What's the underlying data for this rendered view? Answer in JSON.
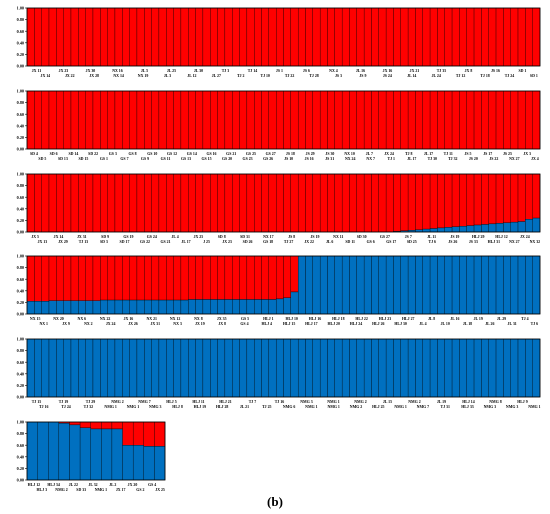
{
  "caption": "(b)",
  "colors": {
    "red": "#ff0000",
    "blue": "#0070c0",
    "axis": "#000000"
  },
  "chart_data": [
    {
      "type": "bar",
      "stacked": true,
      "ylim": [
        0,
        1
      ],
      "yticks": [
        "1.00",
        "0.80",
        "0.60",
        "0.40",
        "0.20",
        "0.00"
      ],
      "tick_labels_top": [
        "JX 11",
        "JX 23",
        "JX 30",
        "NX 16",
        "JL 5",
        "JL 25",
        "JL 30",
        "TJ 3",
        "TJ 14",
        "JS 1",
        "JS 6",
        "NX 4",
        "JL 16",
        "JX 16",
        "JX 21",
        "TJ 35",
        "JX 8",
        "JS 16",
        "SD 1"
      ],
      "tick_labels_bottom": [
        "JX 14",
        "JX 22",
        "JX 28",
        "NX 14",
        "NX 19",
        "JL 3",
        "JL 12",
        "JL 27",
        "TJ 2",
        "TJ 10",
        "TJ 22",
        "TJ 28",
        "JS 3",
        "JS 9",
        "JS 24",
        "JL 14",
        "JL 24",
        "TJ 12",
        "TJ 18",
        "TJ 24",
        "SD 1"
      ],
      "num_bars": 70,
      "blue_values": [
        0,
        0,
        0,
        0,
        0,
        0,
        0,
        0,
        0,
        0,
        0,
        0,
        0,
        0,
        0,
        0,
        0,
        0,
        0,
        0,
        0,
        0,
        0,
        0,
        0,
        0,
        0,
        0,
        0,
        0,
        0,
        0,
        0,
        0,
        0,
        0,
        0,
        0,
        0,
        0,
        0,
        0,
        0,
        0,
        0,
        0,
        0,
        0,
        0,
        0,
        0,
        0,
        0,
        0,
        0,
        0,
        0,
        0,
        0,
        0,
        0,
        0,
        0,
        0,
        0,
        0,
        0,
        0,
        0,
        0
      ]
    },
    {
      "type": "bar",
      "stacked": true,
      "ylim": [
        0,
        1
      ],
      "yticks": [
        "1.00",
        "0.80",
        "0.60",
        "0.40",
        "0.20",
        "0.00"
      ],
      "tick_labels_top": [
        "SD 4",
        "SD 6",
        "SD 14",
        "SD 22",
        "GS 3",
        "GS 8",
        "GS 10",
        "GS 12",
        "GS 14",
        "GS 16",
        "GS 21",
        "GS 25",
        "GS 27",
        "JS 18",
        "JS 29",
        "JS 30",
        "NX 10",
        "JL 7",
        "JX 24",
        "TJ 8",
        "JL 17",
        "TJ 11",
        "JS 5",
        "JS 17",
        "JS 25",
        "JX 3"
      ],
      "tick_labels_bottom": [
        "SD 5",
        "SD 13",
        "SD 15",
        "GS 1",
        "GS 7",
        "GS 9",
        "GS 11",
        "GS 13",
        "GS 15",
        "GS 20",
        "GS 23",
        "GS 26",
        "JS 10",
        "JS 16",
        "JS 31",
        "NX 24",
        "NX 7",
        "TJ 1",
        "JL 17",
        "TJ 30",
        "TJ 32",
        "JS 20",
        "JS 22",
        "NX 27",
        "JX 4"
      ],
      "num_bars": 70,
      "blue_values": [
        0,
        0,
        0,
        0,
        0,
        0,
        0,
        0,
        0,
        0,
        0,
        0,
        0,
        0,
        0,
        0,
        0,
        0,
        0,
        0,
        0,
        0,
        0,
        0,
        0,
        0,
        0,
        0,
        0,
        0,
        0,
        0,
        0,
        0,
        0,
        0,
        0,
        0,
        0,
        0,
        0,
        0,
        0,
        0,
        0,
        0,
        0,
        0,
        0,
        0,
        0,
        0,
        0,
        0,
        0,
        0,
        0,
        0,
        0,
        0,
        0,
        0,
        0,
        0,
        0,
        0,
        0,
        0,
        0,
        0
      ]
    },
    {
      "type": "bar",
      "stacked": true,
      "ylim": [
        0,
        1
      ],
      "yticks": [
        "1.00",
        "0.80",
        "0.60",
        "0.40",
        "0.20",
        "0.00"
      ],
      "tick_labels_top": [
        "JX 5",
        "JX 14",
        "JX 31",
        "SD 9",
        "GS 19",
        "GS 24",
        "JL 4",
        "JX 25",
        "SD 8",
        "SD 31",
        "NX 17",
        "JS 8",
        "JS 19",
        "NX 11",
        "SD 30",
        "GS 27",
        "JS 7",
        "JL 11",
        "JS 19",
        "HLJ 29",
        "HLJ 12",
        "JX 24"
      ],
      "tick_labels_bottom": [
        "JX 13",
        "JX 29",
        "TJ 13",
        "SD 3",
        "SD 17",
        "GS 22",
        "GS 21",
        "JL 17",
        "J 25",
        "JX 23",
        "SD 26",
        "GS 18",
        "TJ 27",
        "JX 22",
        "JL 6",
        "SD 11",
        "GS 6",
        "GS 17",
        "SD 25",
        "TJ 6",
        "JS 26",
        "JS 33",
        "HLJ 31",
        "NX 27",
        "NX 32"
      ],
      "num_bars": 70,
      "blue_values": [
        0,
        0,
        0,
        0,
        0,
        0,
        0,
        0,
        0,
        0,
        0,
        0,
        0,
        0,
        0,
        0,
        0,
        0,
        0,
        0,
        0,
        0,
        0,
        0,
        0,
        0,
        0,
        0,
        0,
        0,
        0,
        0,
        0,
        0,
        0,
        0,
        0,
        0,
        0,
        0,
        0,
        0,
        0,
        0,
        0,
        0,
        0,
        0,
        0,
        0,
        0.01,
        0.02,
        0.03,
        0.04,
        0.05,
        0.06,
        0.07,
        0.08,
        0.09,
        0.1,
        0.11,
        0.12,
        0.13,
        0.14,
        0.15,
        0.16,
        0.17,
        0.18,
        0.22,
        0.24
      ]
    },
    {
      "type": "bar",
      "stacked": true,
      "ylim": [
        0,
        1
      ],
      "yticks": [
        "1.00",
        "0.80",
        "0.60",
        "0.40",
        "0.20",
        "0.00"
      ],
      "tick_labels_top": [
        "NX 15",
        "NX 20",
        "NX 6",
        "NX 22",
        "JX 16",
        "NX 21",
        "NX 12",
        "NX 8",
        "JX 35",
        "GS 5",
        "HLJ 1",
        "HLJ 10",
        "HLJ 16",
        "HLJ 18",
        "HLJ 22",
        "HLJ 23",
        "HLJ 27",
        "JL 8",
        "JL 16",
        "JL 19",
        "JL 29",
        "TJ 4"
      ],
      "tick_labels_bottom": [
        "NX 1",
        "JX 9",
        "NX 2",
        "JX 24",
        "JX 26",
        "JX 31",
        "NX 3",
        "JX 19",
        "JX 8",
        "GS 4",
        "HLJ 4",
        "HLJ 15",
        "HLJ 17",
        "HLJ 20",
        "HLJ 24",
        "HLJ 26",
        "HLJ 30",
        "JL 4",
        "JL 10",
        "JL 18",
        "JL 26",
        "JL 31",
        "TJ 6"
      ],
      "num_bars": 70,
      "blue_values": [
        0.22,
        0.22,
        0.22,
        0.23,
        0.23,
        0.23,
        0.23,
        0.23,
        0.23,
        0.23,
        0.24,
        0.24,
        0.24,
        0.24,
        0.24,
        0.24,
        0.24,
        0.24,
        0.24,
        0.24,
        0.24,
        0.24,
        0.25,
        0.25,
        0.25,
        0.25,
        0.25,
        0.25,
        0.25,
        0.25,
        0.25,
        0.25,
        0.25,
        0.25,
        0.26,
        0.28,
        0.38,
        1,
        1,
        1,
        1,
        1,
        1,
        1,
        1,
        1,
        1,
        1,
        1,
        1,
        1,
        1,
        1,
        1,
        1,
        1,
        1,
        1,
        1,
        1,
        1,
        1,
        1,
        1,
        1,
        1,
        1,
        1,
        1,
        1
      ]
    },
    {
      "type": "bar",
      "stacked": true,
      "ylim": [
        0,
        1
      ],
      "yticks": [
        "1.00",
        "0.80",
        "0.60",
        "0.40",
        "0.20",
        "0.00"
      ],
      "tick_labels_top": [
        "TJ 15",
        "TJ 19",
        "TJ 29",
        "NMG 2",
        "NMG 7",
        "HLJ 5",
        "HLJ 11",
        "HLJ 21",
        "TJ 7",
        "TJ 16",
        "NMG 3",
        "NMG 1",
        "NMG 2",
        "JL 15",
        "NMG 2",
        "JL 19",
        "HLJ 14",
        "NMG 8",
        "HLJ 9"
      ],
      "tick_labels_bottom": [
        "TJ 16",
        "TJ 24",
        "TJ 32",
        "NMG 1",
        "NMG 1",
        "NMG 3",
        "HLJ 8",
        "HLJ 19",
        "HLJ 28",
        "JL 21",
        "TJ 25",
        "NMG 6",
        "NMG 1",
        "NMG 1",
        "NMG 2",
        "HLJ 25",
        "NMG 1",
        "NMG 7",
        "TJ 31",
        "HLJ 33",
        "NMG 3",
        "NMG 3",
        "NMG 1"
      ],
      "num_bars": 70,
      "blue_values": [
        1,
        1,
        1,
        1,
        1,
        1,
        1,
        1,
        1,
        1,
        1,
        1,
        1,
        1,
        1,
        1,
        1,
        1,
        1,
        1,
        1,
        1,
        1,
        1,
        1,
        1,
        1,
        1,
        1,
        1,
        1,
        1,
        1,
        1,
        1,
        1,
        1,
        1,
        1,
        1,
        1,
        1,
        1,
        1,
        1,
        1,
        1,
        1,
        1,
        1,
        1,
        1,
        1,
        1,
        1,
        1,
        1,
        1,
        1,
        1,
        1,
        1,
        1,
        1,
        1,
        1,
        1,
        1,
        1,
        1
      ]
    },
    {
      "type": "bar",
      "stacked": true,
      "ylim": [
        0,
        1
      ],
      "yticks": [
        "1.00",
        "0.80",
        "0.60",
        "0.40",
        "0.20",
        "0.00"
      ],
      "tick_labels_top": [
        "HLJ 12",
        "HLJ 34",
        "JL 22",
        "JL 32",
        "JL 2",
        "JX 20",
        "GS 4"
      ],
      "tick_labels_bottom": [
        "HLJ 3",
        "NMG 2",
        "SD 33",
        "NMG 1",
        "JX 17",
        "GS 2",
        "JX 25"
      ],
      "num_bars": 13,
      "blue_values": [
        1,
        1,
        1,
        0.98,
        0.95,
        0.9,
        0.88,
        0.88,
        0.88,
        0.6,
        0.6,
        0.58,
        0.58
      ]
    }
  ]
}
